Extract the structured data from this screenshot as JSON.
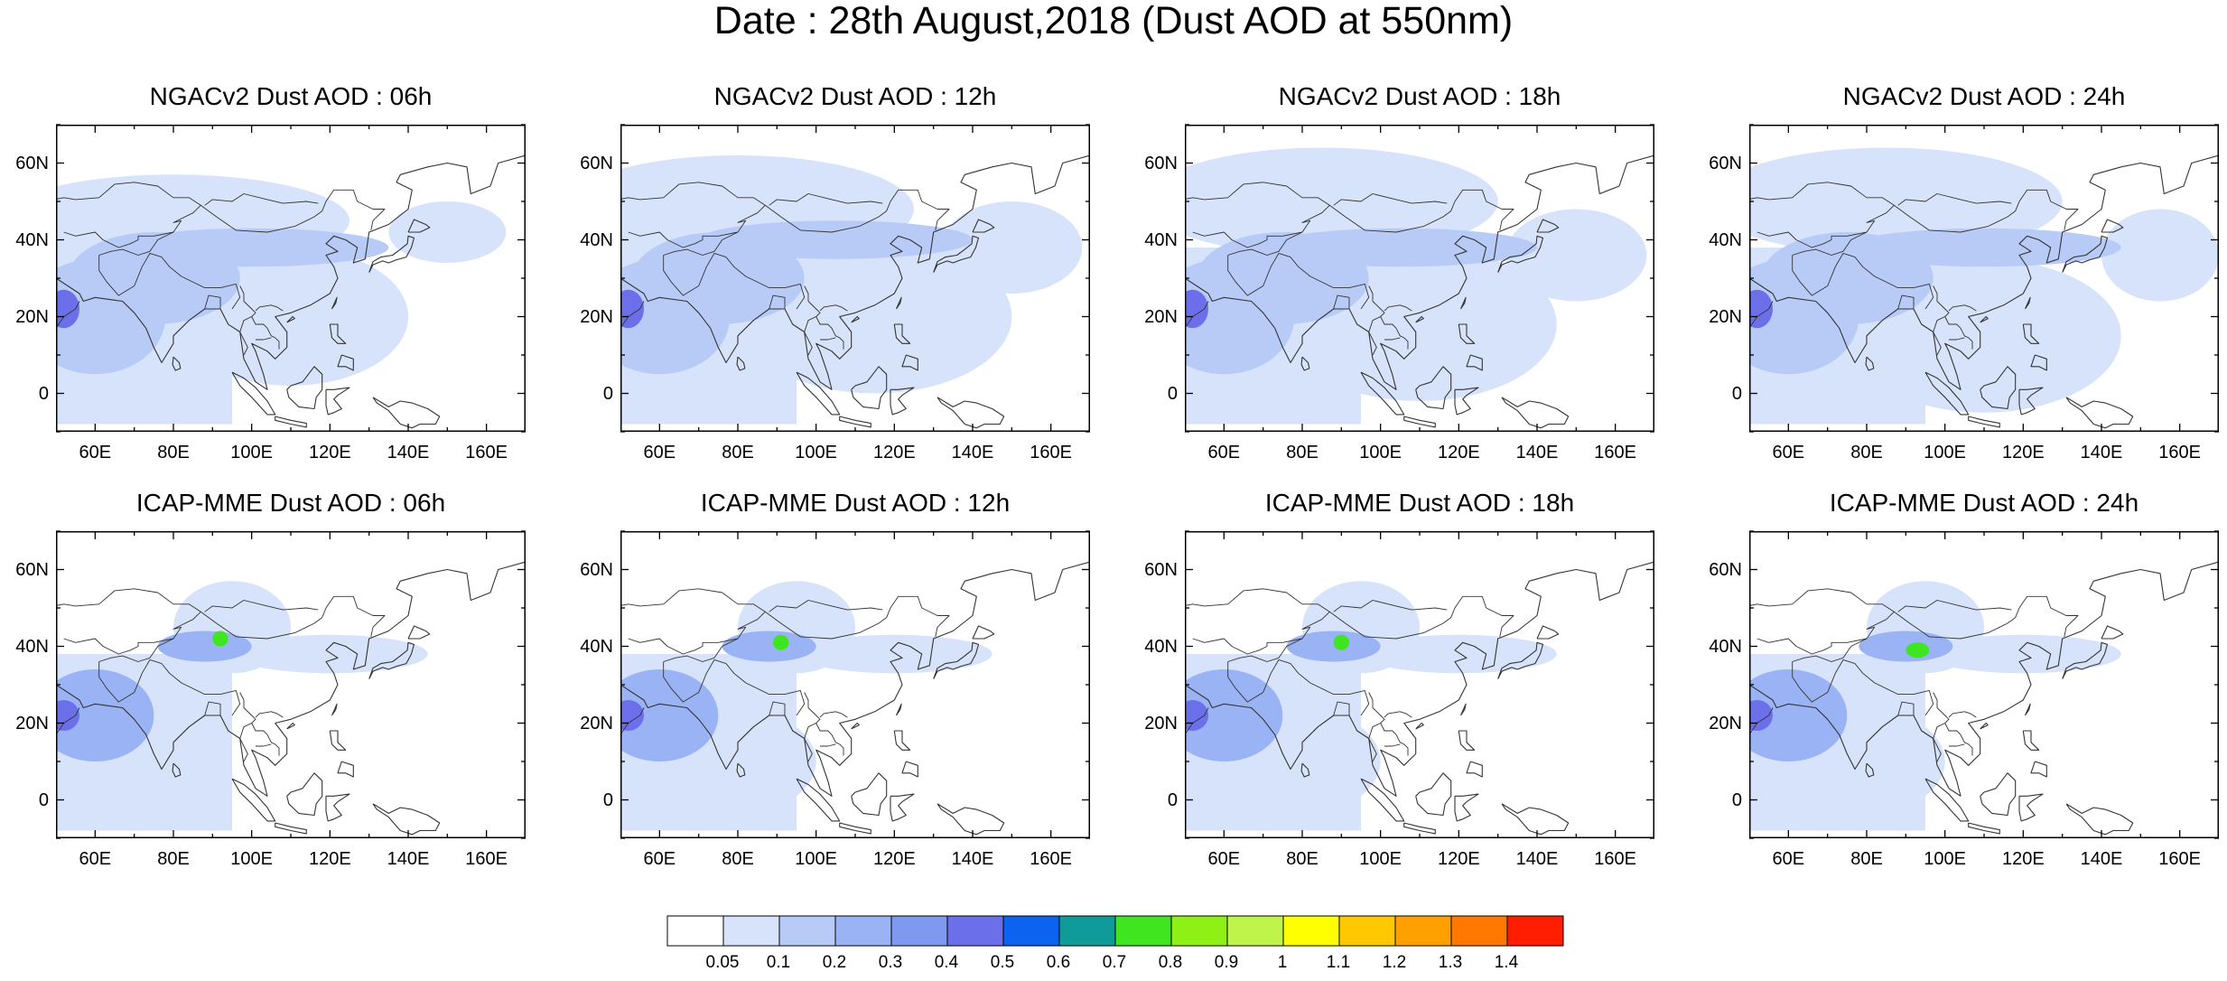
{
  "title": "Date : 28th August,2018 (Dust AOD at 550nm)",
  "chart_data": {
    "type": "heatmap",
    "x_ticks": [
      "60E",
      "80E",
      "100E",
      "120E",
      "140E",
      "160E"
    ],
    "x_tick_values": [
      60,
      80,
      100,
      120,
      140,
      160
    ],
    "y_ticks": [
      "60N",
      "40N",
      "20N",
      "0"
    ],
    "y_tick_values": [
      60,
      40,
      20,
      0
    ],
    "lon_range": [
      50,
      170
    ],
    "lat_range": [
      -10,
      70
    ],
    "colorbar": {
      "levels": [
        "0.05",
        "0.1",
        "0.2",
        "0.3",
        "0.4",
        "0.5",
        "0.6",
        "0.7",
        "0.8",
        "0.9",
        "1",
        "1.1",
        "1.2",
        "1.3",
        "1.4"
      ],
      "colors": [
        "#ffffff",
        "#d7e3fb",
        "#b8cbf7",
        "#9ab3f5",
        "#7f99f0",
        "#6b70ea",
        "#0c63f0",
        "#0f9b99",
        "#3fe51f",
        "#8ef014",
        "#bff54a",
        "#ffff00",
        "#ffc800",
        "#ffa000",
        "#ff7800",
        "#ff1e00"
      ]
    },
    "panels": [
      {
        "id": "ngac-06h",
        "title": "NGACv2 Dust AOD : 06h",
        "blobs": [
          [
            75,
            30,
            22,
            12,
            2
          ],
          [
            60,
            20,
            18,
            15,
            2
          ],
          [
            52,
            22,
            4,
            5,
            5
          ],
          [
            100,
            38,
            35,
            5,
            2
          ],
          [
            150,
            42,
            15,
            8,
            1
          ],
          [
            110,
            20,
            30,
            18,
            1
          ],
          [
            80,
            45,
            45,
            12,
            1
          ]
        ]
      },
      {
        "id": "ngac-12h",
        "title": "NGACv2 Dust AOD : 12h",
        "blobs": [
          [
            75,
            30,
            22,
            12,
            2
          ],
          [
            60,
            20,
            18,
            15,
            2
          ],
          [
            52,
            22,
            4,
            5,
            5
          ],
          [
            105,
            40,
            35,
            5,
            2
          ],
          [
            150,
            38,
            18,
            12,
            1
          ],
          [
            115,
            20,
            35,
            20,
            1
          ],
          [
            80,
            48,
            45,
            14,
            1
          ]
        ]
      },
      {
        "id": "ngac-18h",
        "title": "NGACv2 Dust AOD : 18h",
        "blobs": [
          [
            75,
            30,
            22,
            12,
            2
          ],
          [
            60,
            20,
            18,
            15,
            2
          ],
          [
            52,
            22,
            4,
            5,
            5
          ],
          [
            105,
            38,
            35,
            5,
            2
          ],
          [
            150,
            36,
            18,
            12,
            1
          ],
          [
            110,
            18,
            35,
            20,
            1
          ],
          [
            85,
            50,
            45,
            14,
            1
          ]
        ]
      },
      {
        "id": "ngac-24h",
        "title": "NGACv2 Dust AOD : 24h",
        "blobs": [
          [
            75,
            30,
            22,
            12,
            2
          ],
          [
            60,
            20,
            18,
            15,
            2
          ],
          [
            52,
            22,
            4,
            5,
            5
          ],
          [
            110,
            38,
            35,
            5,
            2
          ],
          [
            155,
            36,
            15,
            12,
            1
          ],
          [
            110,
            15,
            35,
            20,
            1
          ],
          [
            85,
            50,
            45,
            14,
            1
          ]
        ]
      },
      {
        "id": "icap-06h",
        "title": "ICAP-MME Dust AOD : 06h",
        "blobs": [
          [
            88,
            40,
            12,
            4,
            3
          ],
          [
            92,
            42,
            2,
            2,
            8
          ],
          [
            60,
            22,
            15,
            12,
            3
          ],
          [
            52,
            22,
            4,
            4,
            5
          ],
          [
            70,
            10,
            20,
            15,
            1
          ],
          [
            95,
            45,
            15,
            12,
            1
          ],
          [
            120,
            38,
            25,
            5,
            1
          ]
        ]
      },
      {
        "id": "icap-12h",
        "title": "ICAP-MME Dust AOD : 12h",
        "blobs": [
          [
            88,
            40,
            12,
            4,
            3
          ],
          [
            91,
            41,
            2,
            2,
            8
          ],
          [
            60,
            22,
            15,
            12,
            3
          ],
          [
            52,
            22,
            4,
            4,
            5
          ],
          [
            75,
            10,
            25,
            15,
            1
          ],
          [
            95,
            45,
            15,
            12,
            1
          ],
          [
            120,
            38,
            25,
            5,
            1
          ]
        ]
      },
      {
        "id": "icap-18h",
        "title": "ICAP-MME Dust AOD : 18h",
        "blobs": [
          [
            88,
            40,
            12,
            4,
            3
          ],
          [
            90,
            41,
            2,
            2,
            8
          ],
          [
            60,
            22,
            15,
            12,
            3
          ],
          [
            52,
            22,
            4,
            4,
            5
          ],
          [
            75,
            10,
            25,
            15,
            1
          ],
          [
            95,
            45,
            15,
            12,
            1
          ],
          [
            120,
            38,
            25,
            5,
            1
          ]
        ]
      },
      {
        "id": "icap-24h",
        "title": "ICAP-MME Dust AOD : 24h",
        "blobs": [
          [
            90,
            40,
            12,
            4,
            3
          ],
          [
            93,
            39,
            3,
            2,
            8
          ],
          [
            60,
            22,
            15,
            12,
            3
          ],
          [
            52,
            22,
            4,
            4,
            5
          ],
          [
            75,
            10,
            25,
            15,
            1
          ],
          [
            95,
            45,
            15,
            12,
            1
          ],
          [
            120,
            38,
            25,
            5,
            1
          ]
        ]
      }
    ]
  }
}
